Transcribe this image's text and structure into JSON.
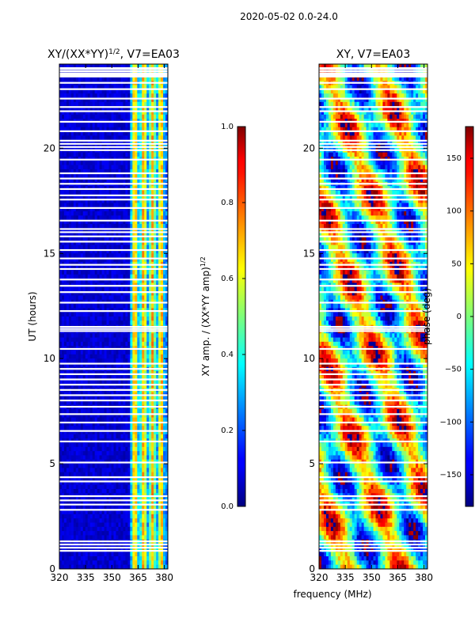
{
  "title": "2020-05-02 0.0-24.0",
  "chart_data": [
    {
      "type": "heatmap",
      "title_prefix": "XY/(XX*YY)",
      "title_exponent": "1/2",
      "title_suffix": ", V7=EA03",
      "xlabel": "frequency (MHz)",
      "ylabel": "UT (hours)",
      "xlim": [
        320,
        382
      ],
      "ylim": [
        0,
        24
      ],
      "xticks": [
        320,
        335,
        350,
        365,
        380
      ],
      "yticks": [
        0,
        5,
        10,
        15,
        20
      ],
      "colorbar": {
        "label_main": "XY amp. / (XX*YY amp)",
        "label_exponent": "1/2",
        "range": [
          0.0,
          1.0
        ],
        "ticks": [
          "0.0",
          "0.2",
          "0.4",
          "0.6",
          "0.8",
          "1.0"
        ]
      },
      "colormap": "jet",
      "values_description": "mostly near 0.05 below 360 MHz; 0.4-0.7 stripes in 360-382 MHz"
    },
    {
      "type": "heatmap",
      "title": "XY, V7=EA03",
      "xlabel": "frequency (MHz)",
      "xlim": [
        320,
        382
      ],
      "ylim": [
        0,
        24
      ],
      "xticks": [
        320,
        335,
        350,
        365,
        380
      ],
      "yticks": [
        0,
        5,
        10,
        15,
        20
      ],
      "colorbar": {
        "label": "phase (deg)",
        "range": [
          -180,
          180
        ],
        "ticks": [
          "−150",
          "−100",
          "−50",
          "0",
          "50",
          "100",
          "150"
        ]
      },
      "colormap": "jet",
      "values_description": "phase spanning -180 to 180 deg, varying with time and frequency"
    }
  ],
  "gaps_ut": [
    0.9,
    1.05,
    1.2,
    1.35,
    2.85,
    3.1,
    3.3,
    3.5,
    4.2,
    4.4,
    5.1,
    6.1,
    6.6,
    7.0,
    7.4,
    7.75,
    8.05,
    8.3,
    8.55,
    8.8,
    9.05,
    9.3,
    9.55,
    9.8,
    10.5,
    11.35,
    11.45,
    11.55,
    12.3,
    12.7,
    13.2,
    13.5,
    13.8,
    14.3,
    14.5,
    14.8,
    15.2,
    15.6,
    15.85,
    16.05,
    16.2,
    16.6,
    17.2,
    17.6,
    17.8,
    18.1,
    18.35,
    18.6,
    18.85,
    19.5,
    19.95,
    20.1,
    20.25,
    20.4,
    20.85,
    21.3,
    21.8,
    22.0,
    22.4,
    22.85,
    23.15,
    23.45,
    23.5,
    23.55,
    23.6,
    23.7,
    23.8,
    23.85
  ]
}
